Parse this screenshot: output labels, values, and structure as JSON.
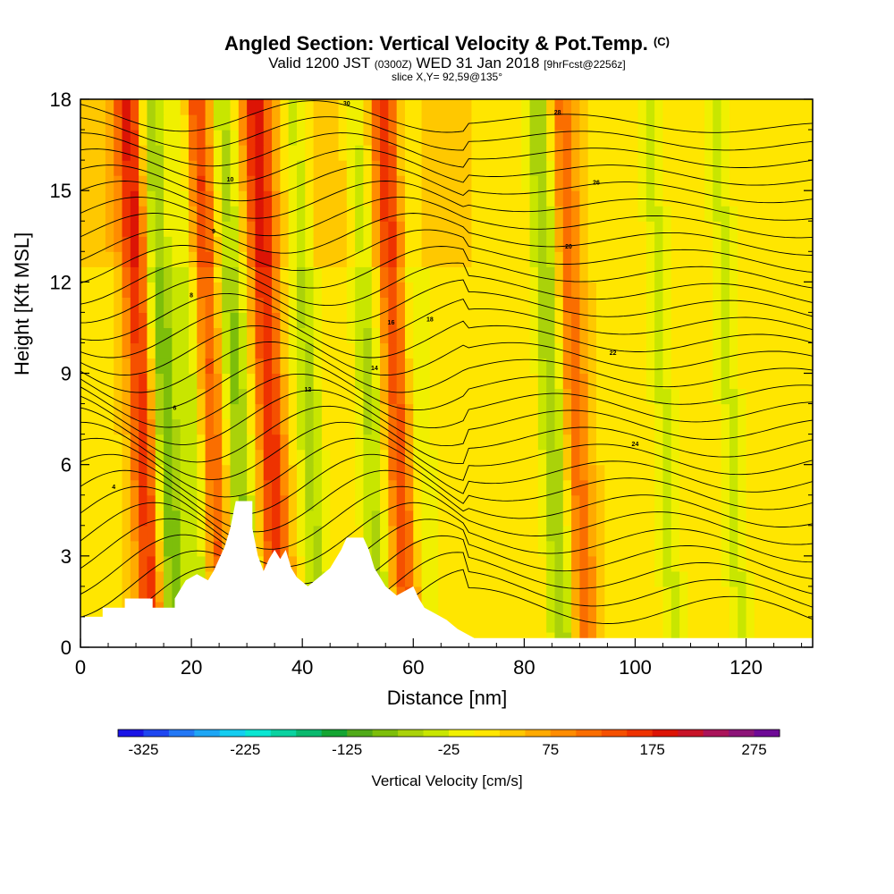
{
  "header": {
    "title": "Angled Section: Vertical Velocity & Pot.Temp.",
    "copyright": "(C)",
    "valid_prefix": "Valid 1200 JST",
    "valid_zulu": "(0300Z)",
    "valid_date": "WED 31 Jan 2018",
    "forecast": "[9hrFcst@2256z]",
    "slice": "slice X,Y= 92,59@135°"
  },
  "chart_data": {
    "type": "heatmap",
    "xlabel": "Distance [nm]",
    "ylabel": "Height [Kft MSL]",
    "xlim": [
      0,
      132
    ],
    "ylim": [
      0,
      18
    ],
    "x_ticks": [
      0,
      20,
      40,
      60,
      80,
      100,
      120
    ],
    "y_ticks": [
      0,
      3,
      6,
      9,
      12,
      15,
      18
    ],
    "colorbar": {
      "label": "Vertical Velocity [cm/s]",
      "tick_labels": [
        "-325",
        "-225",
        "-125",
        "-25",
        "75",
        "175",
        "275"
      ],
      "min": -350,
      "step": 25,
      "colors": [
        "#1a14e6",
        "#1e46f0",
        "#2378f5",
        "#1ea6f5",
        "#14cdf0",
        "#0ae6d2",
        "#0ad2a0",
        "#0ab96e",
        "#14a532",
        "#50aa19",
        "#7dbe0a",
        "#aad20a",
        "#c8e600",
        "#f0f000",
        "#ffe600",
        "#ffc800",
        "#ffaa00",
        "#ff8c00",
        "#fa6e00",
        "#f55000",
        "#ee3200",
        "#dc1405",
        "#c81428",
        "#aa145a",
        "#8c1478",
        "#6e0a96"
      ]
    },
    "terrain_kft": [
      [
        0,
        1.0
      ],
      [
        4,
        1.0
      ],
      [
        4,
        1.3
      ],
      [
        8,
        1.3
      ],
      [
        8,
        1.6
      ],
      [
        13,
        1.6
      ],
      [
        13,
        1.3
      ],
      [
        17,
        1.3
      ],
      [
        17,
        1.6
      ],
      [
        18,
        1.9
      ],
      [
        19,
        2.2
      ],
      [
        21,
        2.4
      ],
      [
        23,
        2.2
      ],
      [
        24,
        2.5
      ],
      [
        25,
        2.9
      ],
      [
        26,
        3.3
      ],
      [
        27,
        3.9
      ],
      [
        28,
        4.8
      ],
      [
        31,
        4.8
      ],
      [
        31,
        3.9
      ],
      [
        32,
        3.0
      ],
      [
        33,
        2.5
      ],
      [
        34,
        2.9
      ],
      [
        35,
        3.2
      ],
      [
        36,
        2.9
      ],
      [
        37,
        3.2
      ],
      [
        38,
        2.6
      ],
      [
        39,
        2.3
      ],
      [
        41,
        2.0
      ],
      [
        43,
        2.3
      ],
      [
        45,
        2.6
      ],
      [
        46,
        2.9
      ],
      [
        47,
        3.2
      ],
      [
        48,
        3.6
      ],
      [
        51,
        3.6
      ],
      [
        52,
        3.2
      ],
      [
        53,
        2.6
      ],
      [
        55,
        2.0
      ],
      [
        57,
        1.7
      ],
      [
        60,
        2.0
      ],
      [
        61,
        1.6
      ],
      [
        62,
        1.3
      ],
      [
        64,
        1.1
      ],
      [
        66,
        0.9
      ],
      [
        68,
        0.6
      ],
      [
        71,
        0.3
      ],
      [
        132,
        0.3
      ]
    ],
    "isentrope_labels": [
      "4",
      "6",
      "8",
      "9",
      "10",
      "12",
      "14",
      "16",
      "18",
      "20",
      "22",
      "24",
      "26",
      "28",
      "30"
    ],
    "vertical_velocity_features": [
      {
        "x": 10,
        "value": 150
      },
      {
        "x": 14,
        "value": -125
      },
      {
        "x": 20,
        "value": -100
      },
      {
        "x": 22,
        "value": 150
      },
      {
        "x": 27,
        "value": -100
      },
      {
        "x": 33,
        "value": 150
      },
      {
        "x": 40,
        "value": -75
      },
      {
        "x": 51,
        "value": -75
      },
      {
        "x": 56,
        "value": 125
      },
      {
        "x": 60,
        "value": -50
      },
      {
        "x": 84,
        "value": -100
      },
      {
        "x": 88,
        "value": 100
      },
      {
        "x": 104,
        "value": -50
      },
      {
        "x": 116,
        "value": -50
      }
    ]
  }
}
